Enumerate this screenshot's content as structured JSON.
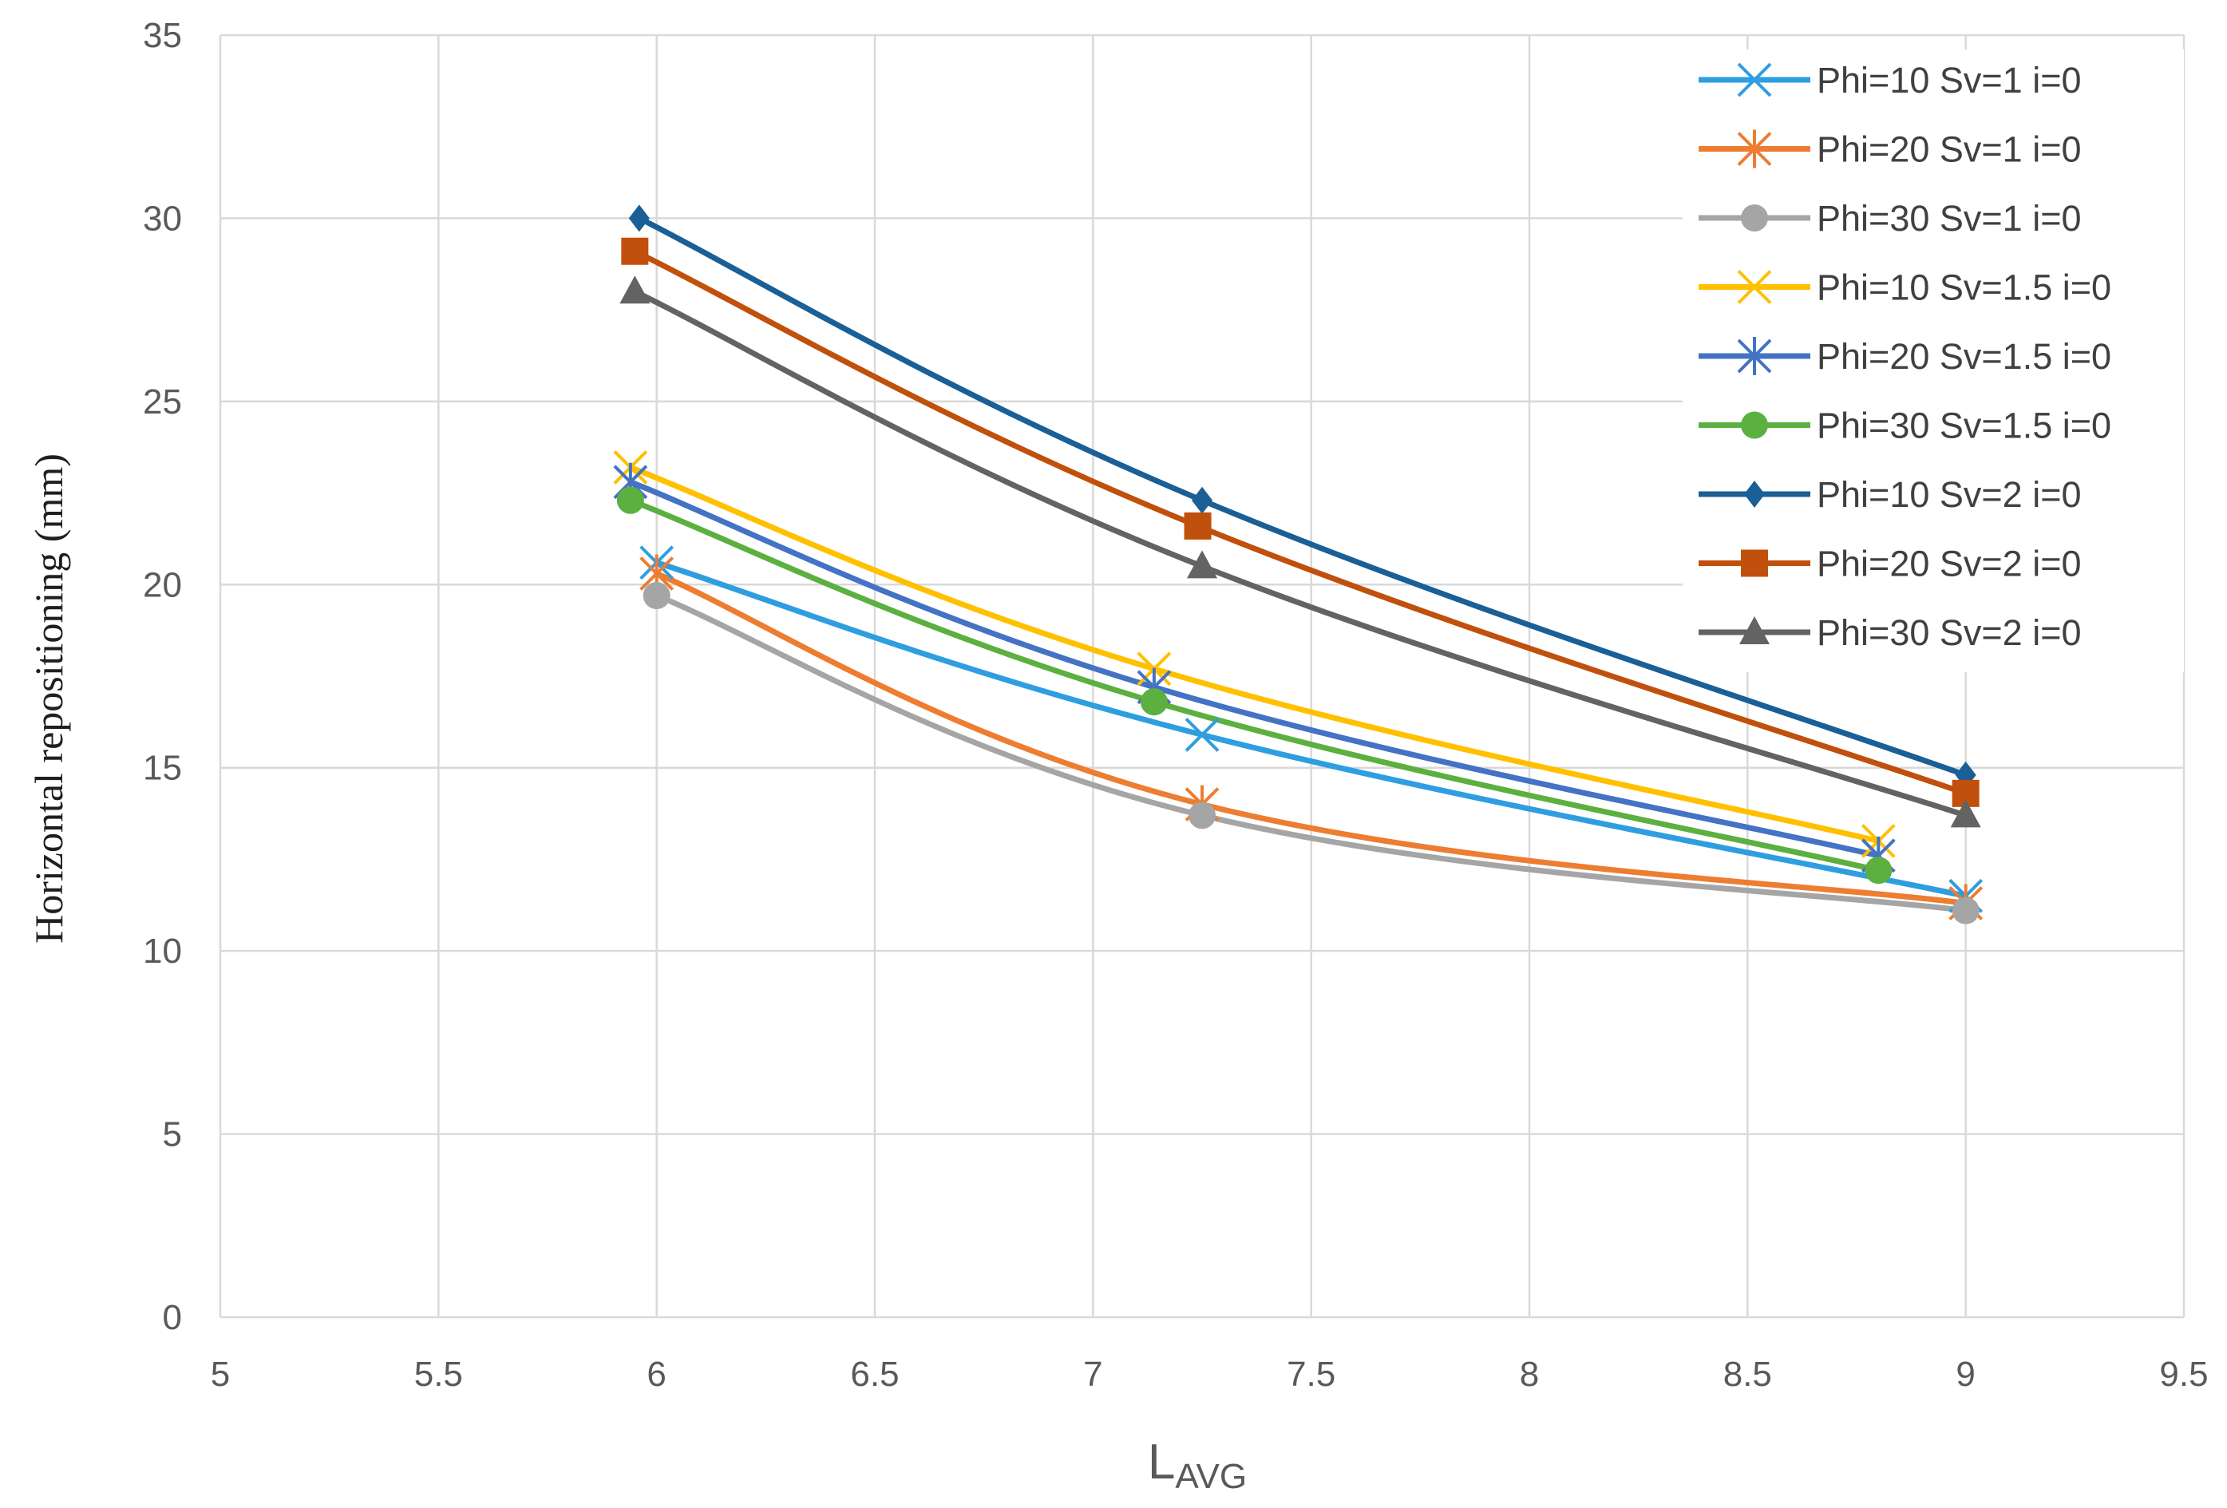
{
  "chart_data": {
    "type": "line",
    "smooth": true,
    "title": "",
    "xlabel": {
      "main": "L",
      "subscript": "AVG"
    },
    "ylabel": "Horizontal repositioning (mm)",
    "xlim": [
      5,
      9.5
    ],
    "ylim": [
      0,
      35
    ],
    "xticks": [
      5,
      5.5,
      6,
      6.5,
      7,
      7.5,
      8,
      8.5,
      9,
      9.5
    ],
    "yticks": [
      0,
      5,
      10,
      15,
      20,
      25,
      30,
      35
    ],
    "xtick_labels": [
      "5",
      "5.5",
      "6",
      "6.5",
      "7",
      "7.5",
      "8",
      "8.5",
      "9",
      "9.5"
    ],
    "ytick_labels": [
      "0",
      "5",
      "10",
      "15",
      "20",
      "25",
      "30",
      "35"
    ],
    "grid": "vertical and horizontal major gridlines",
    "legend_position": "top-right",
    "series": [
      {
        "name": "Phi=10 Sv=1 i=0",
        "color": "#2f9ee0",
        "marker": "x",
        "x": [
          6.0,
          7.25,
          9.0
        ],
        "y": [
          20.6,
          15.9,
          11.5
        ]
      },
      {
        "name": "Phi=20 Sv=1 i=0",
        "color": "#ed7d31",
        "marker": "asterisk",
        "x": [
          6.0,
          7.25,
          9.0
        ],
        "y": [
          20.3,
          14.0,
          11.3
        ]
      },
      {
        "name": "Phi=30 Sv=1 i=0",
        "color": "#a5a5a5",
        "marker": "circle",
        "x": [
          6.0,
          7.25,
          9.0
        ],
        "y": [
          19.7,
          13.7,
          11.1
        ]
      },
      {
        "name": "Phi=10 Sv=1.5 i=0",
        "color": "#ffc000",
        "marker": "x",
        "x": [
          5.94,
          7.14,
          8.8
        ],
        "y": [
          23.2,
          17.7,
          13.0
        ]
      },
      {
        "name": "Phi=20 Sv=1.5 i=0",
        "color": "#4472c4",
        "marker": "asterisk",
        "x": [
          5.94,
          7.14,
          8.8
        ],
        "y": [
          22.8,
          17.2,
          12.6
        ]
      },
      {
        "name": "Phi=30 Sv=1.5 i=0",
        "color": "#5bb040",
        "marker": "circle",
        "x": [
          5.94,
          7.14,
          8.8
        ],
        "y": [
          22.3,
          16.8,
          12.2
        ]
      },
      {
        "name": "Phi=10 Sv=2 i=0",
        "color": "#1a5f96",
        "marker": "diamond",
        "x": [
          5.96,
          7.25,
          9.0
        ],
        "y": [
          30.0,
          22.3,
          14.8
        ]
      },
      {
        "name": "Phi=20 Sv=2 i=0",
        "color": "#c0500c",
        "marker": "square",
        "x": [
          5.95,
          7.24,
          9.0
        ],
        "y": [
          29.1,
          21.6,
          14.3
        ]
      },
      {
        "name": "Phi=30 Sv=2  i=0",
        "color": "#636363",
        "marker": "triangle",
        "x": [
          5.95,
          7.25,
          9.0
        ],
        "y": [
          28.0,
          20.5,
          13.7
        ]
      }
    ]
  }
}
